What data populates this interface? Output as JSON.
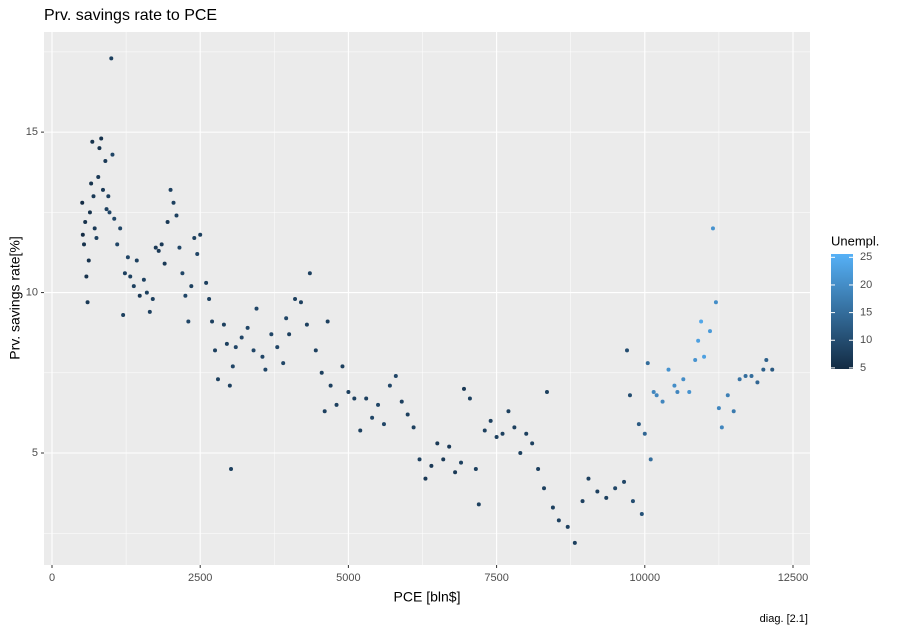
{
  "chart_data": {
    "type": "scatter",
    "title": "Prv. savings rate to PCE",
    "x_label": "PCE [bln$]",
    "y_label": "Prv. savings rate[%]",
    "caption": "diag. [2.1]",
    "legend_title": "Unempl.",
    "xlim": [
      -135,
      12787
    ],
    "ylim": [
      1.51,
      18.12
    ],
    "xticks": [
      0,
      2500,
      5000,
      7500,
      10000,
      12500
    ],
    "yticks": [
      5,
      10,
      15
    ],
    "grid": true,
    "color_scale": {
      "low": "#132B43",
      "high": "#56B1F7",
      "lim": [
        4.8,
        25.6
      ],
      "ticks": [
        5,
        10,
        15,
        20,
        25
      ]
    },
    "x": [
      510,
      520,
      540,
      560,
      580,
      600,
      620,
      640,
      660,
      680,
      700,
      720,
      750,
      780,
      800,
      830,
      860,
      900,
      920,
      950,
      970,
      1000,
      1020,
      1050,
      1100,
      1150,
      1200,
      1230,
      1280,
      1320,
      1380,
      1430,
      1480,
      1550,
      1600,
      1650,
      1700,
      1750,
      1800,
      1850,
      1900,
      1950,
      2000,
      2050,
      2100,
      2150,
      2200,
      2250,
      2300,
      2350,
      2400,
      2450,
      2500,
      2600,
      2650,
      2700,
      2750,
      2800,
      2900,
      2950,
      3000,
      3020,
      3050,
      3100,
      3200,
      3300,
      3400,
      3450,
      3550,
      3600,
      3700,
      3800,
      3900,
      3950,
      4000,
      4100,
      4200,
      4300,
      4350,
      4450,
      4550,
      4600,
      4650,
      4700,
      4800,
      4900,
      5000,
      5100,
      5200,
      5300,
      5400,
      5500,
      5600,
      5700,
      5800,
      5900,
      6000,
      6100,
      6200,
      6300,
      6400,
      6500,
      6600,
      6700,
      6800,
      6900,
      6950,
      7050,
      7150,
      7200,
      7300,
      7400,
      7500,
      7600,
      7700,
      7800,
      7900,
      8000,
      8100,
      8200,
      8300,
      8350,
      8450,
      8550,
      8700,
      8820,
      8950,
      9050,
      9200,
      9350,
      9500,
      9650,
      9700,
      9750,
      9800,
      9900,
      9950,
      10000,
      10050,
      10100,
      10150,
      10200,
      10300,
      10400,
      10500,
      10550,
      10650,
      10750,
      10850,
      10900,
      10950,
      11000,
      11100,
      11150,
      11200,
      11250,
      11300,
      11400,
      11500,
      11600,
      11700,
      11800,
      11900,
      12000,
      12050,
      12150
    ],
    "y": [
      12.8,
      11.8,
      11.5,
      12.2,
      10.5,
      9.7,
      11.0,
      12.5,
      13.4,
      14.7,
      13.0,
      12.0,
      11.7,
      13.6,
      14.5,
      14.8,
      13.2,
      14.1,
      12.6,
      13.0,
      12.5,
      17.3,
      14.3,
      12.3,
      11.5,
      12.0,
      9.3,
      10.6,
      11.1,
      10.5,
      10.2,
      11.0,
      9.9,
      10.4,
      10.0,
      9.4,
      9.8,
      11.4,
      11.3,
      11.5,
      10.9,
      12.2,
      13.2,
      12.8,
      12.4,
      11.4,
      10.6,
      9.9,
      9.1,
      10.2,
      11.7,
      11.2,
      11.8,
      10.3,
      9.8,
      9.1,
      8.2,
      7.3,
      9.0,
      8.4,
      7.1,
      4.5,
      7.7,
      8.3,
      8.6,
      8.9,
      8.2,
      9.5,
      8.0,
      7.6,
      8.7,
      8.3,
      7.8,
      9.2,
      8.7,
      9.8,
      9.7,
      9.0,
      10.6,
      8.2,
      7.5,
      6.3,
      9.1,
      7.1,
      6.5,
      7.7,
      6.9,
      6.7,
      5.7,
      6.7,
      6.1,
      6.5,
      5.9,
      7.1,
      7.4,
      6.6,
      6.2,
      5.8,
      4.8,
      4.2,
      4.6,
      5.3,
      4.8,
      5.2,
      4.4,
      4.7,
      7.0,
      6.7,
      4.5,
      3.4,
      5.7,
      6.0,
      5.5,
      5.6,
      6.3,
      5.8,
      5.0,
      5.6,
      5.3,
      4.5,
      3.9,
      6.9,
      3.3,
      2.9,
      2.7,
      2.2,
      3.5,
      4.2,
      3.8,
      3.6,
      3.9,
      4.1,
      8.2,
      6.8,
      3.5,
      5.9,
      3.1,
      5.6,
      7.8,
      4.8,
      6.9,
      6.8,
      6.6,
      7.6,
      7.1,
      6.9,
      7.3,
      6.9,
      7.9,
      8.5,
      9.1,
      8.0,
      8.8,
      12.0,
      9.7,
      6.4,
      5.8,
      6.8,
      6.3,
      7.3,
      7.4,
      7.4,
      7.2,
      7.6,
      7.9,
      7.6
    ],
    "color_values": [
      5,
      5,
      6,
      6,
      6,
      7,
      6,
      6,
      6,
      6,
      7,
      7,
      8,
      7,
      6,
      6,
      7,
      7,
      8,
      8,
      9,
      8,
      9,
      9,
      9,
      9,
      8,
      8,
      9,
      8,
      8,
      8,
      7,
      8,
      8,
      8,
      8,
      7,
      7,
      7,
      7,
      7,
      8,
      8,
      8,
      9,
      9,
      9,
      9,
      8,
      8,
      9,
      8,
      8,
      8,
      8,
      8,
      8,
      8,
      8,
      8,
      8,
      9,
      9,
      9,
      9,
      9,
      9,
      9,
      9,
      9,
      9,
      9,
      9,
      8,
      8,
      8,
      8,
      8,
      8,
      8,
      8,
      8,
      8,
      8,
      8,
      8,
      8,
      8,
      8,
      9,
      9,
      9,
      9,
      9,
      8,
      8,
      8,
      8,
      7,
      7,
      7,
      7,
      7,
      7,
      8,
      7,
      8,
      8,
      8,
      8,
      8,
      8,
      8,
      8,
      8,
      8,
      8,
      8,
      8,
      8,
      8,
      8,
      8,
      8,
      8,
      8,
      8,
      8,
      8,
      9,
      9,
      10,
      10,
      10,
      12,
      11,
      14,
      15,
      15,
      19,
      19,
      19,
      21,
      20,
      19,
      20,
      21,
      21,
      23,
      24,
      23,
      22,
      21,
      20,
      19,
      19,
      18,
      17,
      16,
      15,
      15,
      14,
      13,
      13,
      12
    ]
  }
}
